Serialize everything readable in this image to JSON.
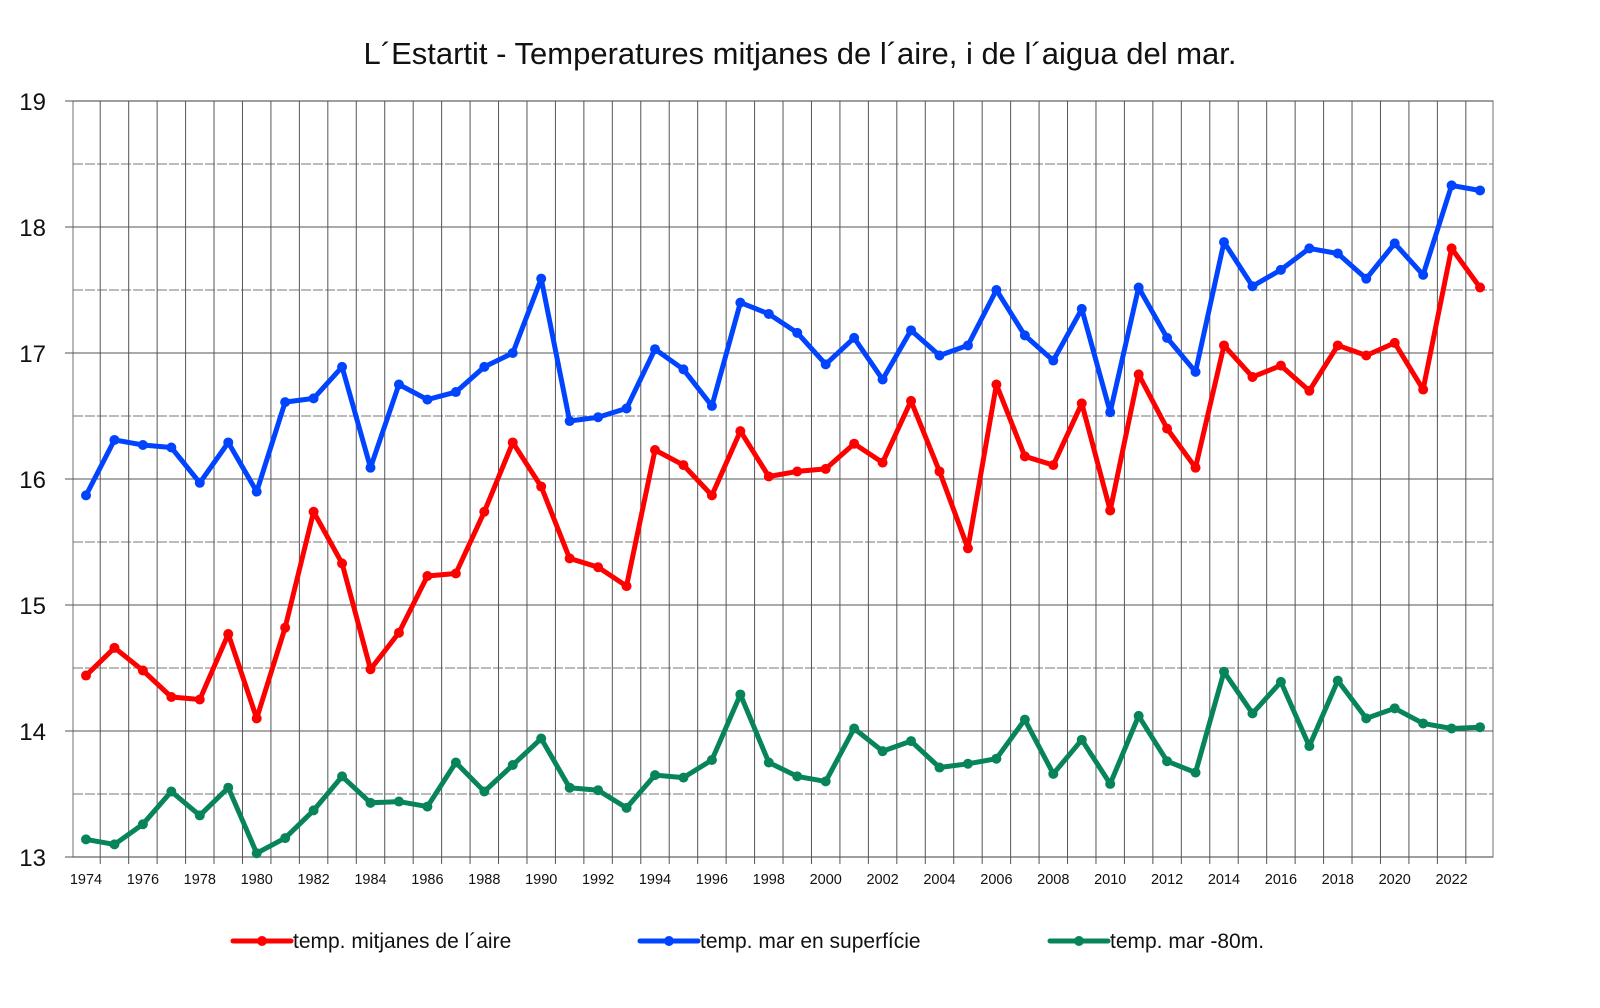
{
  "chart_data": {
    "type": "line",
    "title": "L´Estartit - Temperatures mitjanes de l´aire, i de l´aigua del mar.",
    "xlabel": "",
    "ylabel": "",
    "ylim": [
      13,
      19
    ],
    "y_ticks": [
      "13",
      "14",
      "15",
      "16",
      "17",
      "18",
      "19"
    ],
    "x_ticks": [
      "1974",
      "1976",
      "1978",
      "1980",
      "1982",
      "1984",
      "1986",
      "1988",
      "1990",
      "1992",
      "1994",
      "1996",
      "1998",
      "2000",
      "2002",
      "2004",
      "2006",
      "2008",
      "2010",
      "2012",
      "2014",
      "2016",
      "2018",
      "2020",
      "2022"
    ],
    "grid": true,
    "legend_position": "bottom",
    "x": [
      1974,
      1975,
      1976,
      1977,
      1978,
      1979,
      1980,
      1981,
      1982,
      1983,
      1984,
      1985,
      1986,
      1987,
      1988,
      1989,
      1990,
      1991,
      1992,
      1993,
      1994,
      1995,
      1996,
      1997,
      1998,
      1999,
      2000,
      2001,
      2002,
      2003,
      2004,
      2005,
      2006,
      2007,
      2008,
      2009,
      2010,
      2011,
      2012,
      2013,
      2014,
      2015,
      2016,
      2017,
      2018,
      2019,
      2020,
      2021,
      2022,
      2023
    ],
    "series": [
      {
        "name": "temp. mitjanes de l´aire",
        "color": "#ff0000",
        "values": [
          14.44,
          14.66,
          14.48,
          14.27,
          14.25,
          14.77,
          14.1,
          14.82,
          15.74,
          15.33,
          14.49,
          14.78,
          15.23,
          15.25,
          15.74,
          16.29,
          15.94,
          15.37,
          15.3,
          15.15,
          16.23,
          16.11,
          15.87,
          16.38,
          16.02,
          16.06,
          16.08,
          16.28,
          16.13,
          16.62,
          16.06,
          15.45,
          16.75,
          16.18,
          16.11,
          16.6,
          15.75,
          16.83,
          16.4,
          16.09,
          17.06,
          16.81,
          16.9,
          16.7,
          17.06,
          16.98,
          17.08,
          16.71,
          17.83,
          17.52
        ]
      },
      {
        "name": "temp. mar en superfície",
        "color": "#0044ff",
        "values": [
          15.87,
          16.31,
          16.27,
          16.25,
          15.97,
          16.29,
          15.9,
          16.61,
          16.64,
          16.89,
          16.09,
          16.75,
          16.63,
          16.69,
          16.89,
          17.0,
          17.59,
          16.46,
          16.49,
          16.56,
          17.03,
          16.87,
          16.58,
          17.4,
          17.31,
          17.16,
          16.91,
          17.12,
          16.79,
          17.18,
          16.98,
          17.06,
          17.5,
          17.14,
          16.94,
          17.35,
          16.53,
          17.52,
          17.12,
          16.85,
          17.88,
          17.53,
          17.66,
          17.83,
          17.79,
          17.59,
          17.87,
          17.62,
          18.33,
          18.29
        ]
      },
      {
        "name": "temp. mar -80m.",
        "color": "#078558",
        "values": [
          13.14,
          13.1,
          13.26,
          13.52,
          13.33,
          13.55,
          13.03,
          13.15,
          13.37,
          13.64,
          13.43,
          13.44,
          13.4,
          13.75,
          13.52,
          13.73,
          13.94,
          13.55,
          13.53,
          13.39,
          13.65,
          13.63,
          13.77,
          14.29,
          13.75,
          13.64,
          13.6,
          14.02,
          13.84,
          13.92,
          13.71,
          13.74,
          13.78,
          14.09,
          13.66,
          13.93,
          13.58,
          14.12,
          13.76,
          13.67,
          14.47,
          14.14,
          14.39,
          13.88,
          14.4,
          14.1,
          14.18,
          14.06,
          14.02,
          14.03
        ]
      }
    ]
  }
}
